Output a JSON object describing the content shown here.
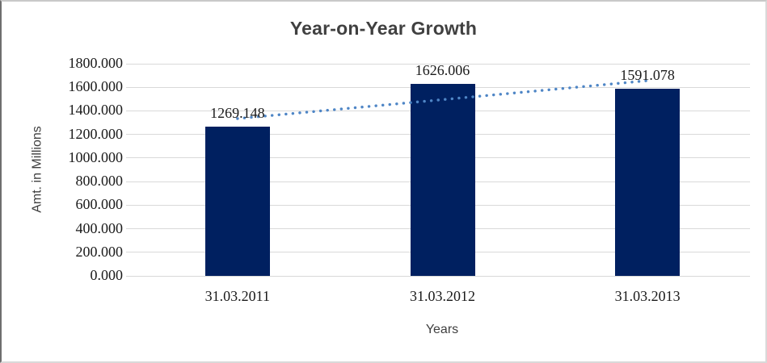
{
  "chart_data": {
    "type": "bar",
    "title": "Year-on-Year Growth",
    "xlabel": "Years",
    "ylabel": "Amt. in Millions",
    "categories": [
      "31.03.2011",
      "31.03.2012",
      "31.03.2013"
    ],
    "values": [
      1269.148,
      1626.006,
      1591.078
    ],
    "data_labels": [
      "1269.148",
      "1626.006",
      "1591.078"
    ],
    "ylim": [
      0,
      1800
    ],
    "ytick_step": 200,
    "ytick_labels": [
      "1800.000",
      "1600.000",
      "1400.000",
      "1200.000",
      "1000.000",
      "800.000",
      "600.000",
      "400.000",
      "200.000",
      "0.000"
    ],
    "grid": true,
    "legend": "none",
    "trendline": {
      "type": "linear",
      "style": "dotted"
    },
    "colors": {
      "bar": "#002060",
      "trendline": "#4f86c6",
      "gridline": "#d9d9d9",
      "title": "#404040",
      "axis_title": "#3f3f3f",
      "tick_text": "#1a1a1a"
    }
  }
}
